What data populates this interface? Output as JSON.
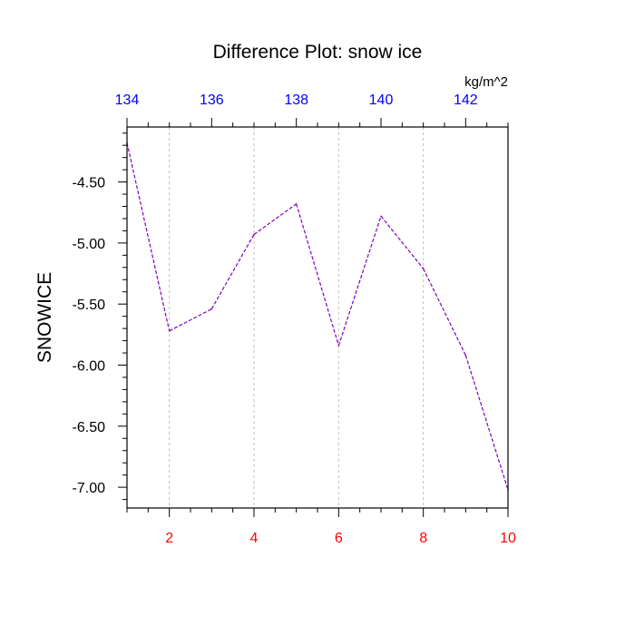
{
  "chart_data": {
    "type": "line",
    "title": "Difference Plot: snow ice",
    "unit_label": "kg/m^2",
    "ylabel": "SNOWICE",
    "xlabel": "",
    "x": [
      1,
      2,
      3,
      4,
      5,
      6,
      7,
      8,
      9,
      10
    ],
    "series": [
      {
        "values": [
          -4.18,
          -5.72,
          -5.54,
          -4.93,
          -4.68,
          -5.84,
          -4.78,
          -5.21,
          -5.92,
          -7.02
        ],
        "color": "#8000c0"
      }
    ],
    "xlim": [
      1,
      10
    ],
    "ylim": [
      -7.17,
      -4.05
    ],
    "x_ticks": [
      2,
      4,
      6,
      8,
      10
    ],
    "x_tick_labels": [
      "2",
      "4",
      "6",
      "8",
      "10"
    ],
    "x_tick_color": "#ff0000",
    "y_ticks": [
      -4.5,
      -5.0,
      -5.5,
      -6.0,
      -6.5,
      -7.0
    ],
    "y_tick_labels": [
      "-4.50",
      "-5.00",
      "-5.50",
      "-6.00",
      "-6.50",
      "-7.00"
    ],
    "top_axis": {
      "range": [
        134,
        143
      ],
      "ticks": [
        134,
        136,
        138,
        140,
        142
      ],
      "tick_labels": [
        "134",
        "136",
        "138",
        "140",
        "142"
      ],
      "color": "#0000ff"
    },
    "grid": "vertical-dashed",
    "grid_color": "#c0c0c0",
    "line_style": "dashed"
  }
}
